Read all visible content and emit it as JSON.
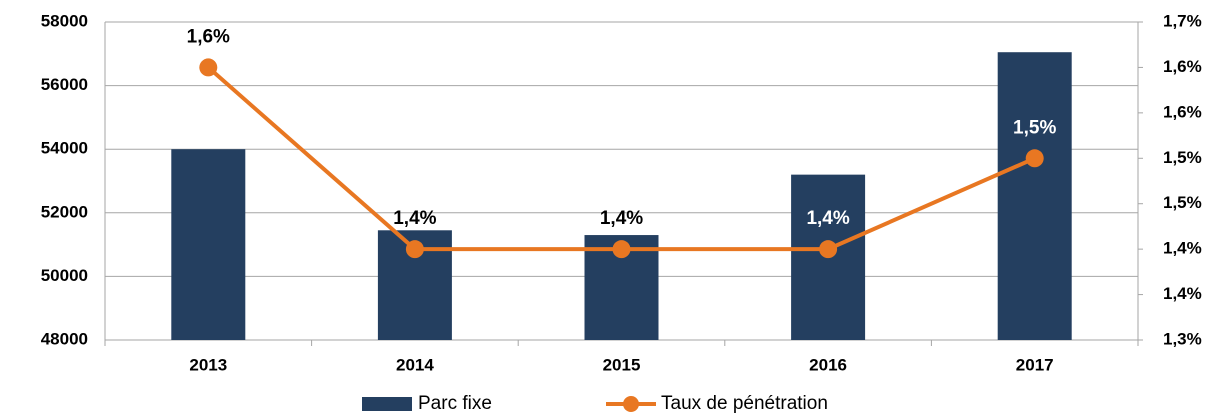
{
  "chart_data": {
    "type": "bar_line",
    "categories": [
      "2013",
      "2014",
      "2015",
      "2016",
      "2017"
    ],
    "series": [
      {
        "name": "Parc fixe",
        "type": "bar",
        "color": "#243f60",
        "values": [
          54000,
          51450,
          51300,
          53200,
          57050
        ]
      },
      {
        "name": "Taux de pénétration",
        "type": "line",
        "axis": "y2",
        "color": "#e87722",
        "values": [
          1.6,
          1.4,
          1.4,
          1.4,
          1.5
        ],
        "value_labels": [
          "1,6%",
          "1,4%",
          "1,4%",
          "1,4%",
          "1,5%"
        ]
      }
    ],
    "ylim": [
      48000,
      58000
    ],
    "yticks": [
      48000,
      50000,
      52000,
      54000,
      56000,
      58000
    ],
    "y2lim": [
      1.3,
      1.65
    ],
    "y2ticks": [
      {
        "value": 1.3,
        "label": "1,3%"
      },
      {
        "value": 1.35,
        "label": "1,4%"
      },
      {
        "value": 1.4,
        "label": "1,4%"
      },
      {
        "value": 1.45,
        "label": "1,5%"
      },
      {
        "value": 1.5,
        "label": "1,5%"
      },
      {
        "value": 1.55,
        "label": "1,6%"
      },
      {
        "value": 1.6,
        "label": "1,6%"
      },
      {
        "value": 1.65,
        "label": "1,7%"
      }
    ],
    "grid": true,
    "legend": "bottom"
  }
}
